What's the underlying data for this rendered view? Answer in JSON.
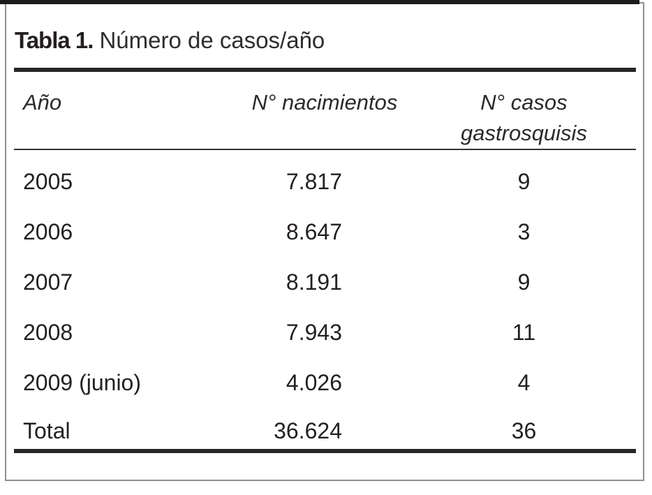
{
  "figure": {
    "label": "Tabla 1.",
    "caption": "Número de casos/año"
  },
  "table": {
    "columns": [
      "Año",
      "N° nacimientos",
      "N° casos gastrosquisis"
    ],
    "rows": [
      {
        "year": "2005",
        "births": "7.817",
        "cases": "9"
      },
      {
        "year": "2006",
        "births": "8.647",
        "cases": "3"
      },
      {
        "year": "2007",
        "births": "8.191",
        "cases": "9"
      },
      {
        "year": "2008",
        "births": "7.943",
        "cases": "11"
      },
      {
        "year": "2009 (junio)",
        "births": "4.026",
        "cases": "4"
      },
      {
        "year": "Total",
        "births": "36.624",
        "cases": "36"
      }
    ]
  },
  "colors": {
    "text": "#231f20",
    "rule": "#262626",
    "frame_border": "#8f8f8f"
  },
  "chart_data": {
    "type": "table",
    "title": "Tabla 1. Número de casos/año",
    "columns": [
      "Año",
      "N° nacimientos",
      "N° casos gastrosquisis"
    ],
    "rows": [
      [
        "2005",
        "7.817",
        "9"
      ],
      [
        "2006",
        "8.647",
        "3"
      ],
      [
        "2007",
        "8.191",
        "9"
      ],
      [
        "2008",
        "7.943",
        "11"
      ],
      [
        "2009 (junio)",
        "4.026",
        "4"
      ],
      [
        "Total",
        "36.624",
        "36"
      ]
    ]
  }
}
